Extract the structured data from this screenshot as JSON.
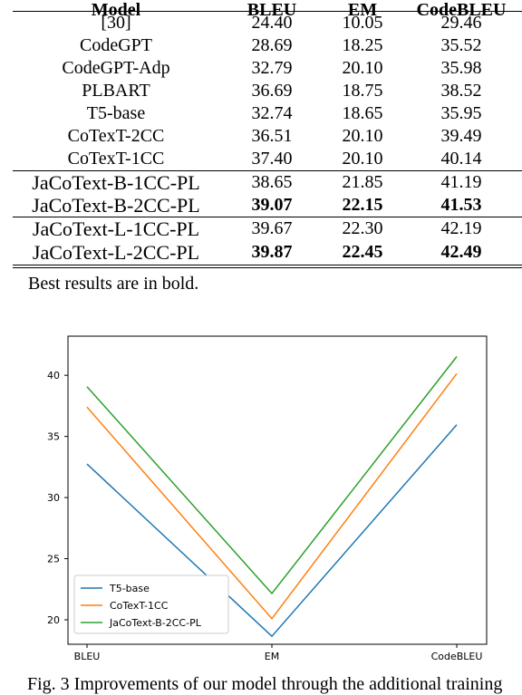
{
  "table": {
    "headers": [
      "Model",
      "BLEU",
      "EM",
      "CodeBLEU"
    ],
    "rows": [
      {
        "model": "[30]",
        "bleu": "24.40",
        "em": "10.05",
        "codebleu": "29.46"
      },
      {
        "model": "CodeGPT",
        "bleu": "28.69",
        "em": "18.25",
        "codebleu": "35.52"
      },
      {
        "model": "CodeGPT-Adp",
        "bleu": "32.79",
        "em": "20.10",
        "codebleu": "35.98"
      },
      {
        "model": "PLBART",
        "bleu": "36.69",
        "em": "18.75",
        "codebleu": "38.52"
      },
      {
        "model": "T5-base",
        "bleu": "32.74",
        "em": "18.65",
        "codebleu": "35.95"
      },
      {
        "model": "CoTexT-2CC",
        "bleu": "36.51",
        "em": "20.10",
        "codebleu": "39.49"
      },
      {
        "model": "CoTexT-1CC",
        "bleu": "37.40",
        "em": "20.10",
        "codebleu": "40.14"
      },
      {
        "model": "JaCoText-B-1CC-PL",
        "bleu": "38.65",
        "em": "21.85",
        "codebleu": "41.19"
      },
      {
        "model": "JaCoText-B-2CC-PL",
        "bleu": "39.07",
        "em": "22.15",
        "codebleu": "41.53"
      },
      {
        "model": "JaCoText-L-1CC-PL",
        "bleu": "39.67",
        "em": "22.30",
        "codebleu": "42.19"
      },
      {
        "model": "JaCoText-L-2CC-PL",
        "bleu": "39.87",
        "em": "22.45",
        "codebleu": "42.49"
      }
    ],
    "note": "Best results are in bold."
  },
  "chart_data": {
    "type": "line",
    "categories": [
      "BLEU",
      "EM",
      "CodeBLEU"
    ],
    "yticks": [
      20,
      25,
      30,
      35,
      40
    ],
    "ylim": [
      18.0,
      43.2
    ],
    "grid": false,
    "legend_position": "lower-left",
    "series": [
      {
        "name": "T5-base",
        "values": [
          32.74,
          18.65,
          35.95
        ],
        "color": "#1f77b4"
      },
      {
        "name": "CoTexT-1CC",
        "values": [
          37.4,
          20.1,
          40.14
        ],
        "color": "#ff7f0e"
      },
      {
        "name": "JaCoText-B-2CC-PL",
        "values": [
          39.07,
          22.15,
          41.53
        ],
        "color": "#2ca02c"
      }
    ]
  },
  "caption": "Fig. 3  Improvements of our model through the additional training"
}
